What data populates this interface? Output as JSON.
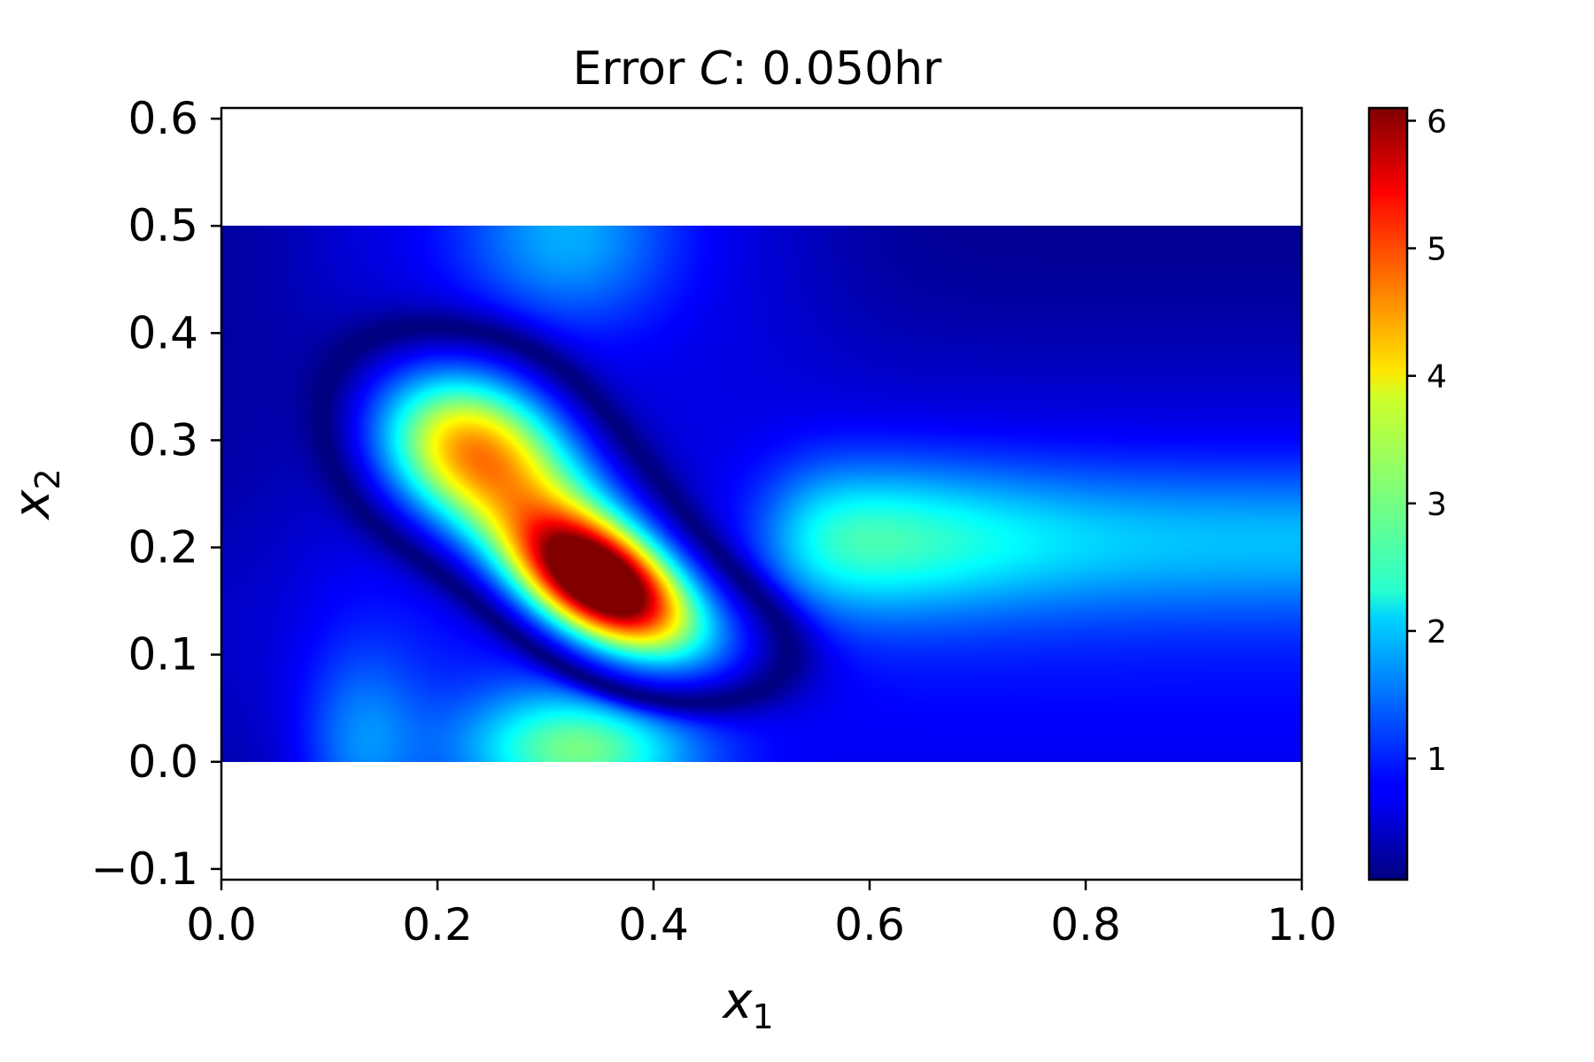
{
  "chart_data": {
    "type": "heatmap",
    "title": {
      "prefix": "Error ",
      "var": "C",
      "suffix": ": 0.050hr"
    },
    "xlabel": {
      "var": "x",
      "sub": "1"
    },
    "ylabel": {
      "var": "x",
      "sub": "2"
    },
    "xlim": [
      0.0,
      1.0
    ],
    "ylim": [
      -0.11,
      0.61
    ],
    "data_extent": {
      "x": [
        0.0,
        1.0
      ],
      "y": [
        0.0,
        0.5
      ]
    },
    "xticks": [
      0.0,
      0.2,
      0.4,
      0.6,
      0.8,
      1.0
    ],
    "xtick_labels": [
      "0.0",
      "0.2",
      "0.4",
      "0.6",
      "0.8",
      "1.0"
    ],
    "yticks": [
      -0.1,
      0.0,
      0.1,
      0.2,
      0.3,
      0.4,
      0.5,
      0.6
    ],
    "ytick_labels": [
      "−0.1",
      "0.0",
      "0.1",
      "0.2",
      "0.3",
      "0.4",
      "0.5",
      "0.6"
    ],
    "colormap": "jet",
    "colorbar": {
      "range": [
        0.05,
        6.1
      ],
      "ticks": [
        1,
        2,
        3,
        4,
        5,
        6
      ],
      "tick_labels": [
        "1",
        "2",
        "3",
        "4",
        "5",
        "6"
      ]
    },
    "field_description": {
      "peak": {
        "x": 0.35,
        "y": 0.17,
        "value": 6.1
      },
      "secondary_peak": {
        "x": 0.235,
        "y": 0.29,
        "value": 3.8
      },
      "right_band": {
        "x_from": 0.5,
        "y": 0.21,
        "value_max": 2.3
      },
      "bottom_spot": {
        "x": 0.33,
        "y": 0.02,
        "value": 2.6
      },
      "top_spot": {
        "x": 0.32,
        "y": 0.48,
        "value": 1.3
      }
    }
  }
}
